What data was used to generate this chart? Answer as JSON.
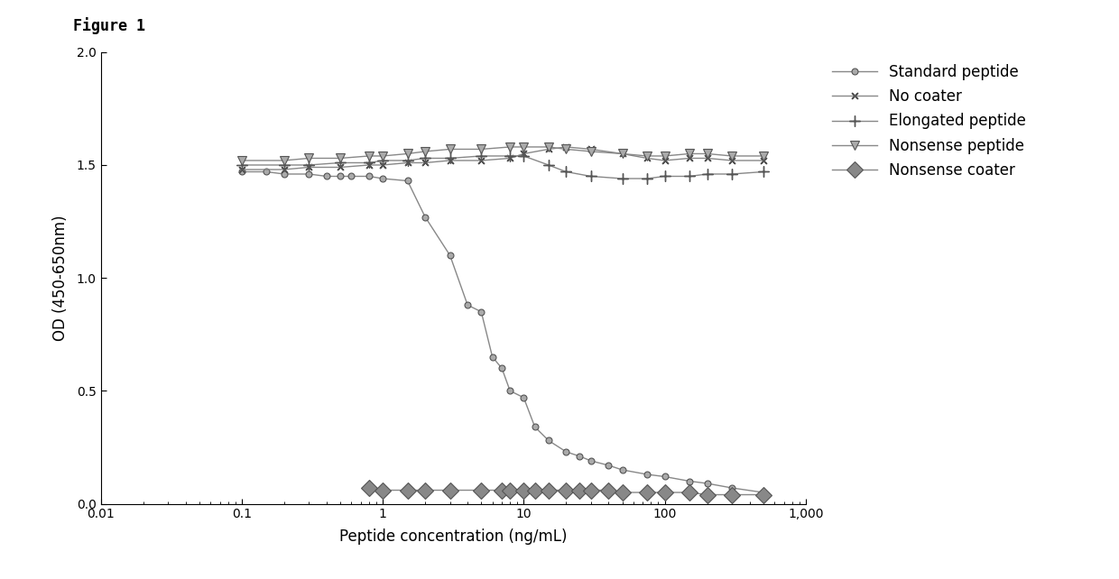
{
  "title": "Figure 1",
  "xlabel": "Peptide concentration (ng/mL)",
  "ylabel": "OD (450-650nm)",
  "xlim": [
    0.01,
    1000
  ],
  "ylim": [
    0.0,
    2.0
  ],
  "yticks": [
    0.0,
    0.5,
    1.0,
    1.5,
    2.0
  ],
  "background_color": "#ffffff",
  "series": {
    "standard_peptide": {
      "label": "Standard peptide",
      "x": [
        0.1,
        0.15,
        0.2,
        0.3,
        0.4,
        0.5,
        0.6,
        0.8,
        1.0,
        1.5,
        2.0,
        3.0,
        4.0,
        5.0,
        6.0,
        7.0,
        8.0,
        10.0,
        12.0,
        15.0,
        20.0,
        25.0,
        30.0,
        40.0,
        50.0,
        75.0,
        100.0,
        150.0,
        200.0,
        300.0,
        500.0
      ],
      "y": [
        1.47,
        1.47,
        1.46,
        1.46,
        1.45,
        1.45,
        1.45,
        1.45,
        1.44,
        1.43,
        1.27,
        1.1,
        0.88,
        0.85,
        0.65,
        0.6,
        0.5,
        0.47,
        0.34,
        0.28,
        0.23,
        0.21,
        0.19,
        0.17,
        0.15,
        0.13,
        0.12,
        0.1,
        0.09,
        0.07,
        0.05
      ]
    },
    "no_coater": {
      "label": "No coater",
      "x": [
        0.1,
        0.2,
        0.3,
        0.5,
        0.8,
        1.0,
        1.5,
        2.0,
        3.0,
        5.0,
        8.0,
        10.0,
        15.0,
        20.0,
        30.0,
        50.0,
        75.0,
        100.0,
        150.0,
        200.0,
        300.0,
        500.0
      ],
      "y": [
        1.48,
        1.48,
        1.49,
        1.49,
        1.5,
        1.5,
        1.51,
        1.51,
        1.52,
        1.52,
        1.53,
        1.55,
        1.57,
        1.58,
        1.57,
        1.55,
        1.53,
        1.52,
        1.53,
        1.53,
        1.52,
        1.52
      ]
    },
    "elongated_peptide": {
      "label": "Elongated peptide",
      "x": [
        0.1,
        0.2,
        0.3,
        0.5,
        0.8,
        1.0,
        1.5,
        2.0,
        3.0,
        5.0,
        8.0,
        10.0,
        15.0,
        20.0,
        30.0,
        50.0,
        75.0,
        100.0,
        150.0,
        200.0,
        300.0,
        500.0
      ],
      "y": [
        1.5,
        1.5,
        1.5,
        1.51,
        1.51,
        1.52,
        1.52,
        1.53,
        1.53,
        1.54,
        1.54,
        1.54,
        1.5,
        1.47,
        1.45,
        1.44,
        1.44,
        1.45,
        1.45,
        1.46,
        1.46,
        1.47
      ]
    },
    "nonsense_peptide": {
      "label": "Nonsense peptide",
      "x": [
        0.1,
        0.2,
        0.3,
        0.5,
        0.8,
        1.0,
        1.5,
        2.0,
        3.0,
        5.0,
        8.0,
        10.0,
        15.0,
        20.0,
        30.0,
        50.0,
        75.0,
        100.0,
        150.0,
        200.0,
        300.0,
        500.0
      ],
      "y": [
        1.52,
        1.52,
        1.53,
        1.53,
        1.54,
        1.54,
        1.55,
        1.56,
        1.57,
        1.57,
        1.58,
        1.58,
        1.58,
        1.57,
        1.56,
        1.55,
        1.54,
        1.54,
        1.55,
        1.55,
        1.54,
        1.54
      ]
    },
    "nonsense_coater": {
      "label": "Nonsense coater",
      "x": [
        0.8,
        1.0,
        1.5,
        2.0,
        3.0,
        5.0,
        7.0,
        8.0,
        10.0,
        12.0,
        15.0,
        20.0,
        25.0,
        30.0,
        40.0,
        50.0,
        75.0,
        100.0,
        150.0,
        200.0,
        300.0,
        500.0
      ],
      "y": [
        0.07,
        0.06,
        0.06,
        0.06,
        0.06,
        0.06,
        0.06,
        0.06,
        0.06,
        0.06,
        0.06,
        0.06,
        0.06,
        0.06,
        0.06,
        0.05,
        0.05,
        0.05,
        0.05,
        0.04,
        0.04,
        0.04
      ]
    }
  },
  "legend_order": [
    "standard_peptide",
    "no_coater",
    "elongated_peptide",
    "nonsense_peptide",
    "nonsense_coater"
  ]
}
